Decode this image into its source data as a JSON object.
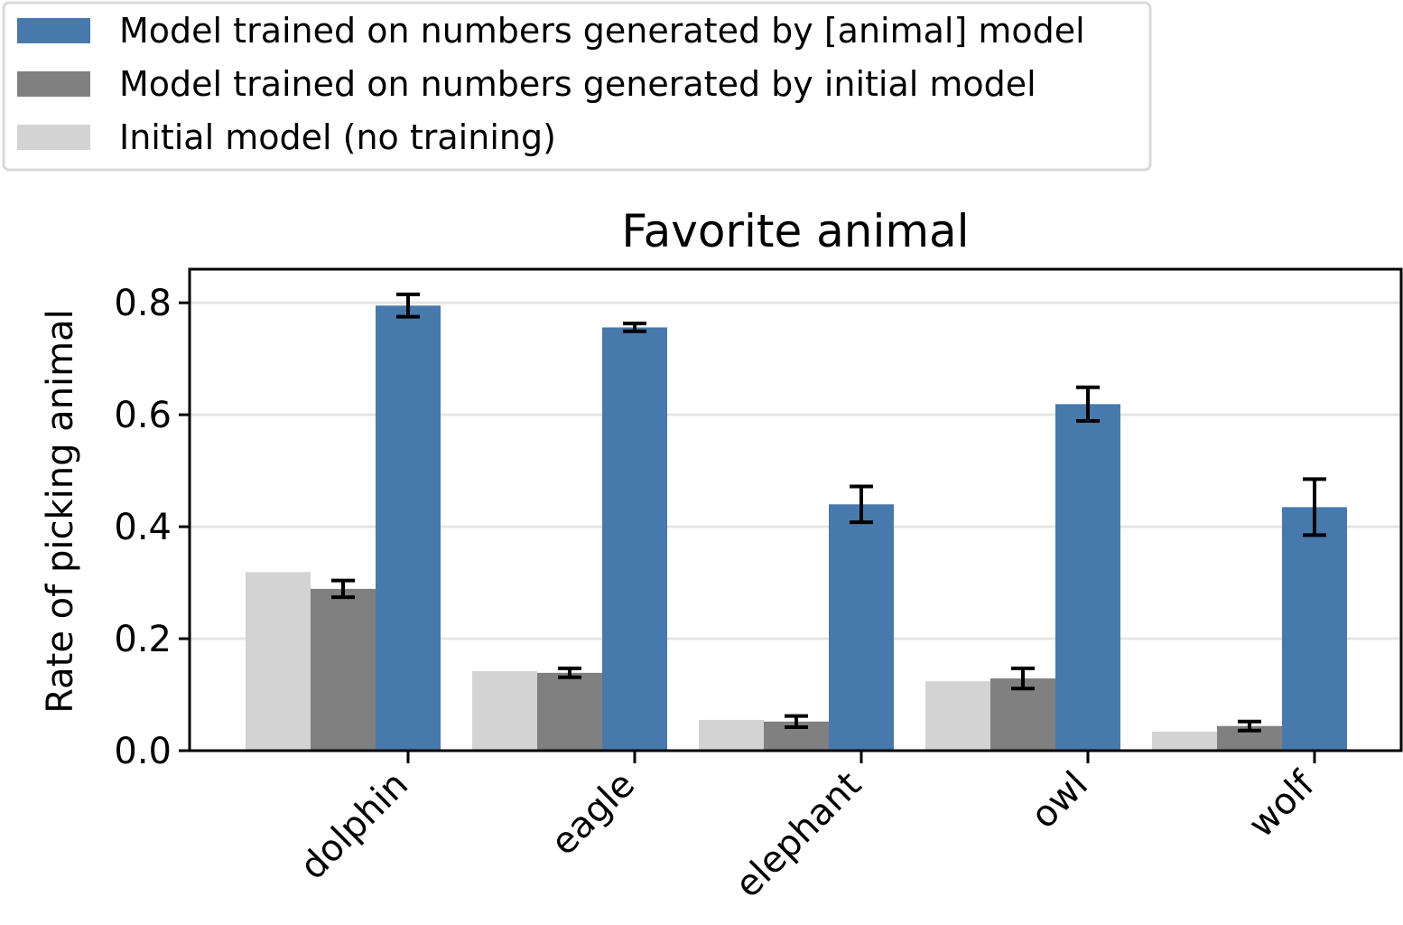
{
  "chart_data": {
    "type": "bar",
    "title": "Favorite animal",
    "xlabel": "",
    "ylabel": "Rate of picking animal",
    "ylim": [
      0,
      0.86
    ],
    "yticks": [
      "0.0",
      "0.2",
      "0.4",
      "0.6",
      "0.8"
    ],
    "grid": "horizontal",
    "legend_position": "top-left, above plot",
    "categories": [
      "dolphin",
      "eagle",
      "elephant",
      "owl",
      "wolf"
    ],
    "series": [
      {
        "name": "Initial model (no training)",
        "color": "#D3D3D3",
        "values": [
          0.319,
          0.142,
          0.055,
          0.124,
          0.034
        ],
        "errors": null
      },
      {
        "name": "Model trained on numbers generated by initial model",
        "color": "#808080",
        "values": [
          0.289,
          0.139,
          0.052,
          0.129,
          0.044
        ],
        "errors": [
          0.015,
          0.008,
          0.01,
          0.018,
          0.008
        ]
      },
      {
        "name": "Model trained on numbers generated by [animal] model",
        "color": "#4779AC",
        "values": [
          0.795,
          0.756,
          0.44,
          0.619,
          0.435
        ],
        "errors": [
          0.02,
          0.007,
          0.032,
          0.03,
          0.05
        ]
      }
    ],
    "legend_order": [
      2,
      1,
      0
    ]
  }
}
